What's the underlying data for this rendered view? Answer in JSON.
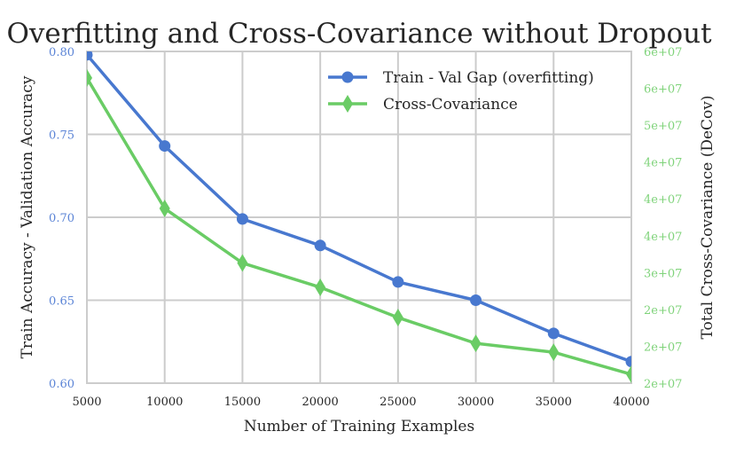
{
  "chart_data": {
    "type": "line",
    "title": "Overfitting and Cross-Covariance without Dropout",
    "xlabel": "Number of Training Examples",
    "ylabel": "Train Accuracy - Validation Accuracy",
    "ylabel_right": "Total Cross-Covariance (DeCov)",
    "x": [
      5000,
      10000,
      15000,
      20000,
      25000,
      30000,
      35000,
      40000
    ],
    "xlim": [
      5000,
      40000
    ],
    "x_ticks": [
      "5000",
      "10000",
      "15000",
      "20000",
      "25000",
      "30000",
      "35000",
      "40000"
    ],
    "ylim": [
      0.6,
      0.8
    ],
    "y_ticks": [
      "0.60",
      "0.65",
      "0.70",
      "0.75",
      "0.80"
    ],
    "ylim_right": [
      15000000,
      60000000
    ],
    "y_ticks_right": [
      "2e+07",
      "2e+07",
      "2e+07",
      "3e+07",
      "4e+07",
      "4e+07",
      "4e+07",
      "5e+07",
      "6e+07",
      "6e+07"
    ],
    "grid": true,
    "legend_position": "top-right",
    "series": [
      {
        "name": "Train - Val Gap (overfitting)",
        "axis": "left",
        "color": "#4878cf",
        "marker": "circle",
        "values": [
          0.798,
          0.743,
          0.699,
          0.683,
          0.661,
          0.65,
          0.63,
          0.613
        ]
      },
      {
        "name": "Cross-Covariance",
        "axis": "right",
        "color": "#6acc65",
        "marker": "diamond",
        "values": [
          56400000,
          38700000,
          31300000,
          28000000,
          23900000,
          20400000,
          19200000,
          16200000
        ]
      }
    ],
    "left_tick_color": "#5b84d6",
    "right_tick_color": "#7fd37a"
  }
}
